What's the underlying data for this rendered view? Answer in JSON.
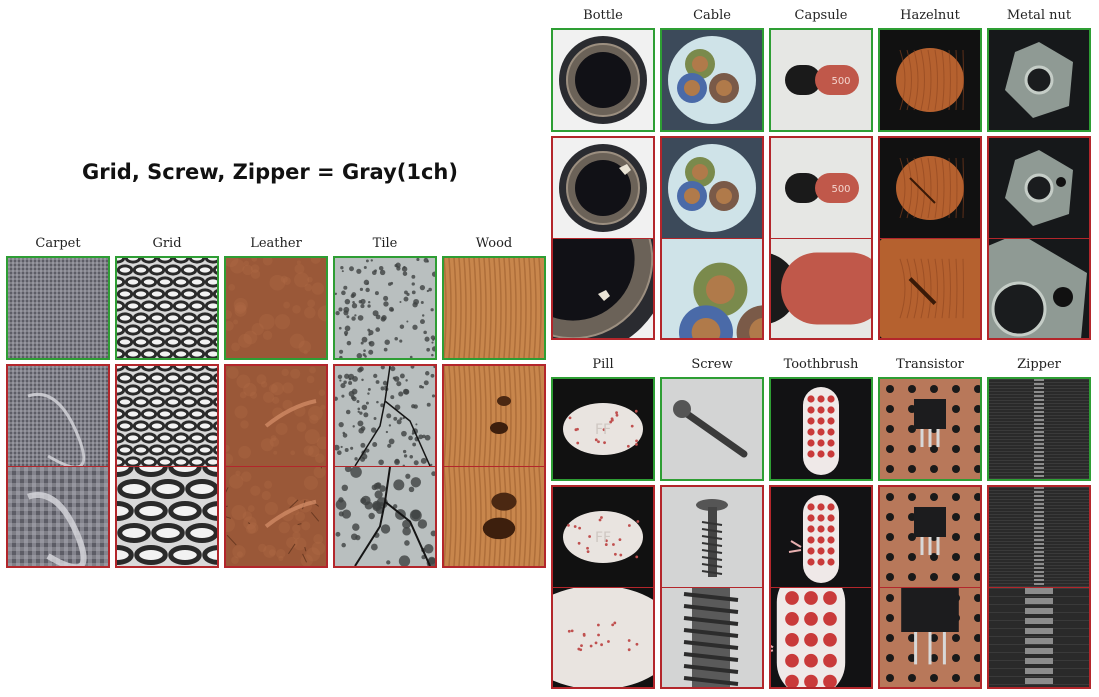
{
  "headline": "Grid, Screw, Zipper = Gray(1ch)",
  "textures": [
    {
      "label": "Carpet",
      "texture": "carpet"
    },
    {
      "label": "Grid",
      "texture": "grid"
    },
    {
      "label": "Leather",
      "texture": "leather"
    },
    {
      "label": "Tile",
      "texture": "tile"
    },
    {
      "label": "Wood",
      "texture": "wood"
    }
  ],
  "objects_top": [
    {
      "label": "Bottle",
      "texture": "bottle"
    },
    {
      "label": "Cable",
      "texture": "cable"
    },
    {
      "label": "Capsule",
      "texture": "capsule",
      "print": "500"
    },
    {
      "label": "Hazelnut",
      "texture": "hazelnut"
    },
    {
      "label": "Metal nut",
      "texture": "metalnut"
    }
  ],
  "objects_bottom": [
    {
      "label": "Pill",
      "texture": "pill",
      "print": "FF"
    },
    {
      "label": "Screw",
      "texture": "screw"
    },
    {
      "label": "Toothbrush",
      "texture": "toothbrush"
    },
    {
      "label": "Transistor",
      "texture": "transistor"
    },
    {
      "label": "Zipper",
      "texture": "zipper"
    }
  ],
  "colors": {
    "good_border": "#2e9e34",
    "anomaly_border": "#b3262b"
  }
}
